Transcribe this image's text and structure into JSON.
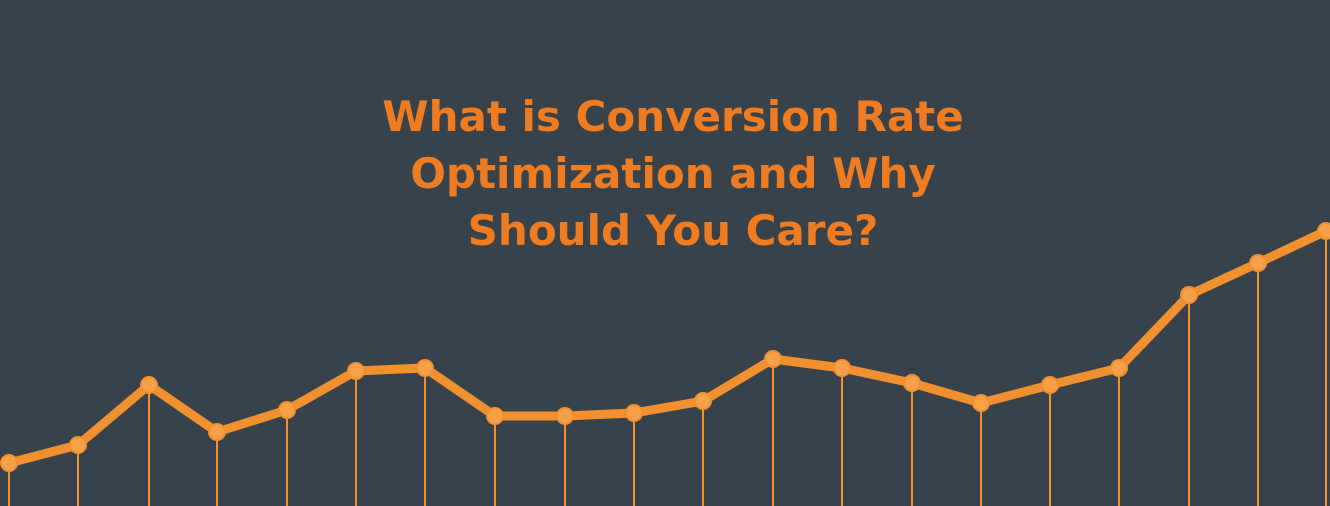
{
  "headline": {
    "lines": [
      "What is Conversion Rate",
      "Optimization and Why",
      "Should You Care?"
    ]
  },
  "colors": {
    "background": "#38424b",
    "accent": "#f07c22",
    "point_fill": "#f6a04a",
    "line": "#f0902e"
  }
}
